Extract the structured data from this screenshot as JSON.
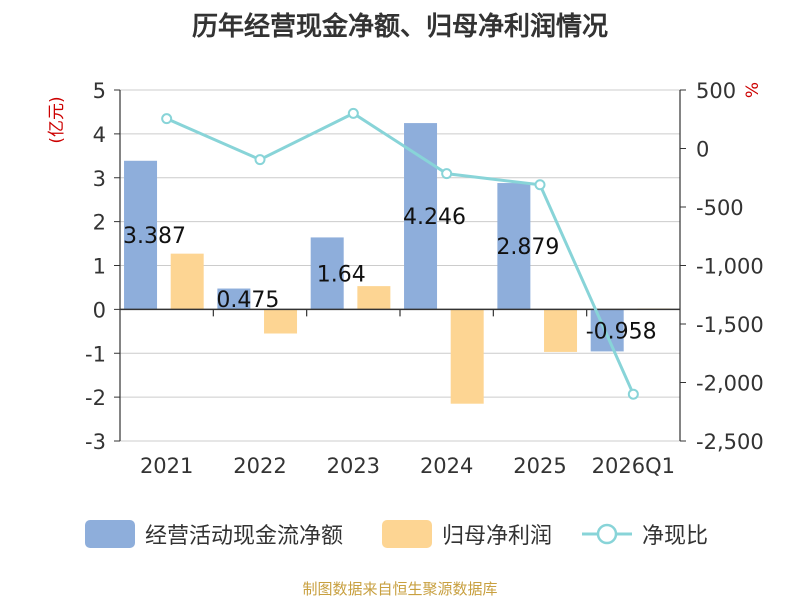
{
  "chart_data": {
    "type": "bar",
    "title": "历年经营现金净额、归母净利润情况",
    "categories": [
      "2021",
      "2022",
      "2023",
      "2024",
      "2025",
      "2026Q1"
    ],
    "left_axis": {
      "label": "(亿元)",
      "min": -3,
      "max": 5,
      "ticks": [
        "5",
        "4",
        "3",
        "2",
        "1",
        "0",
        "-1",
        "-2",
        "-3"
      ]
    },
    "right_axis": {
      "label": "%",
      "min": -2500,
      "max": 500,
      "ticks": [
        "500",
        "0",
        "-500",
        "-1,000",
        "-1,500",
        "-2,000",
        "-2,500"
      ]
    },
    "series": [
      {
        "name": "经营活动现金流净额",
        "kind": "bar",
        "axis": "left",
        "color": "#8eaedb",
        "values": [
          3.387,
          0.475,
          1.64,
          4.246,
          2.879,
          -0.958
        ],
        "labels": [
          "3.387",
          "0.475",
          "1.64",
          "4.246",
          "2.879",
          "-0.958"
        ]
      },
      {
        "name": "归母净利润",
        "kind": "bar",
        "axis": "left",
        "color": "#fdd593",
        "values": [
          1.27,
          -0.55,
          0.53,
          -2.15,
          -0.97,
          0.02
        ]
      },
      {
        "name": "净现比",
        "kind": "line",
        "axis": "right",
        "color": "#88d4d8",
        "values": [
          255,
          -95,
          300,
          -215,
          -310,
          -2100
        ]
      }
    ],
    "grid": true,
    "legend_position": "bottom"
  },
  "source_note": "制图数据来自恒生聚源数据库"
}
